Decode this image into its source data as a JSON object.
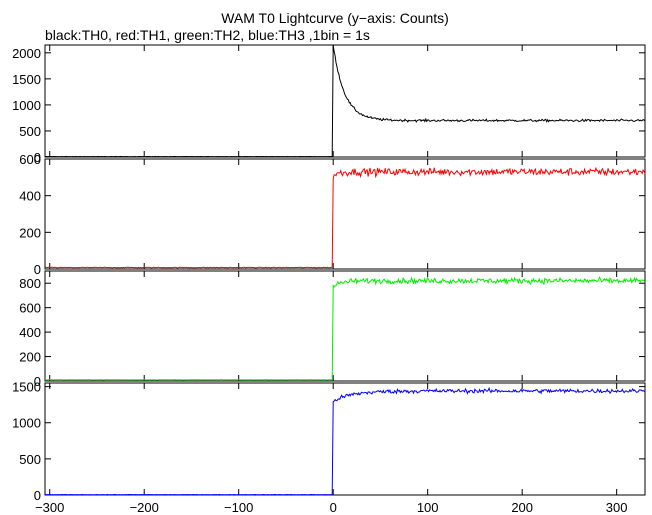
{
  "title": "WAM T0 Lightcurve (y−axis: Counts)",
  "subtitle": "black:TH0, red:TH1, green:TH2, blue:TH3 ,1bin = 1s",
  "chart_data": {
    "type": "line",
    "xlim": [
      -305,
      330
    ],
    "x_ticks": [
      -300,
      -200,
      -100,
      0,
      100,
      200,
      300
    ],
    "x_tick_labels": [
      "−300",
      "−200",
      "−100",
      "0",
      "100",
      "200",
      "300"
    ],
    "panels": [
      {
        "name": "TH0",
        "color": "#000000",
        "ylim": [
          0,
          2150
        ],
        "y_ticks": [
          0,
          500,
          1000,
          1500,
          2000
        ],
        "y_tick_labels": [
          "0",
          "500",
          "1000",
          "1500",
          "2000"
        ],
        "model": {
          "pre": 8,
          "peak": 2150,
          "decay_to": 700,
          "tau": 12,
          "noise": 22
        }
      },
      {
        "name": "TH1",
        "color": "#ff0000",
        "ylim": [
          0,
          600
        ],
        "y_ticks": [
          0,
          200,
          400,
          600
        ],
        "y_tick_labels": [
          "0",
          "200",
          "400",
          "600"
        ],
        "model": {
          "pre": 8,
          "rise_from": 510,
          "level": 530,
          "tau": 6,
          "noise": 20
        }
      },
      {
        "name": "TH2",
        "color": "#00ee00",
        "ylim": [
          0,
          900
        ],
        "y_ticks": [
          0,
          200,
          400,
          600,
          800
        ],
        "y_tick_labels": [
          "0",
          "200",
          "400",
          "600",
          "800"
        ],
        "model": {
          "pre": 10,
          "rise_from": 770,
          "level": 820,
          "tau": 8,
          "noise": 22
        }
      },
      {
        "name": "TH3",
        "color": "#0000ff",
        "ylim": [
          0,
          1550
        ],
        "y_ticks": [
          0,
          500,
          1000,
          1500
        ],
        "y_tick_labels": [
          "0",
          "500",
          "1000",
          "1500"
        ],
        "model": {
          "pre": 5,
          "rise_from": 1300,
          "level": 1440,
          "tau": 20,
          "noise": 28
        }
      }
    ]
  }
}
